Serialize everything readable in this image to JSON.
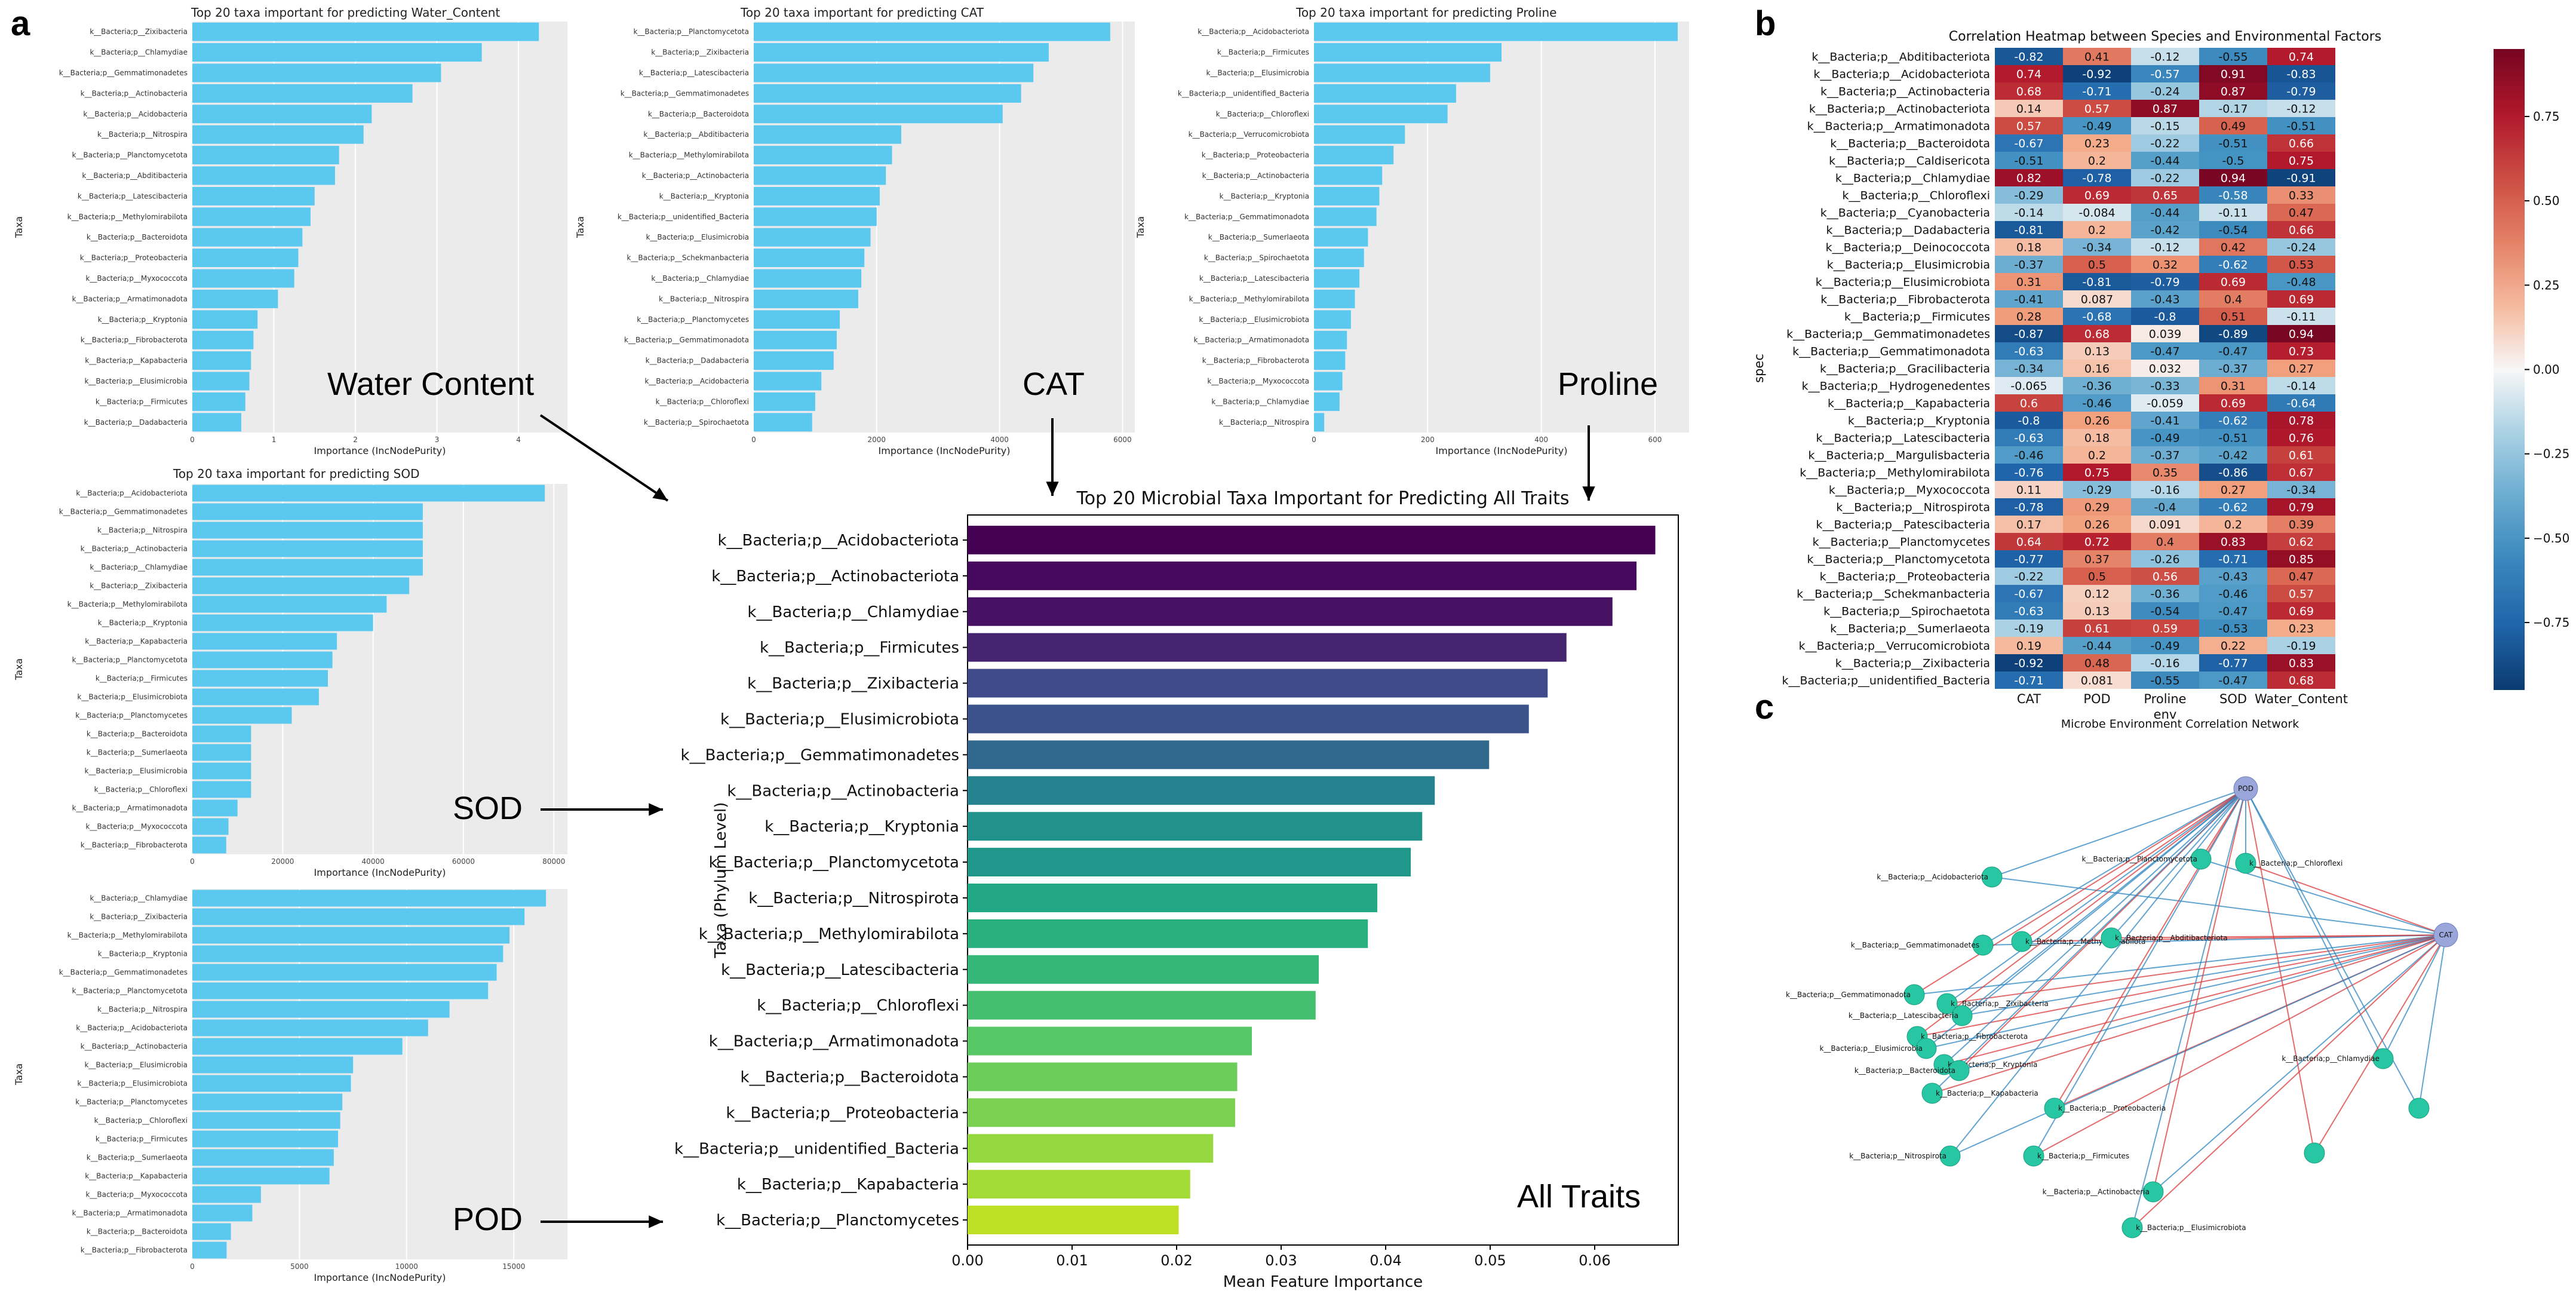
{
  "panels": {
    "a": "a",
    "b": "b",
    "c": "c"
  },
  "labels": {
    "water": "Water Content",
    "cat": "CAT",
    "proline": "Proline",
    "sod": "SOD",
    "pod": "POD",
    "all": "All Traits"
  },
  "colors": {
    "small_bar": "#5bc8ef",
    "small_bg": "#ebebeb",
    "grid": "#ffffff"
  },
  "chart_data": [
    {
      "id": "water",
      "type": "bar",
      "orientation": "horizontal",
      "title": "Top 20 taxa important for predicting Water_Content",
      "xlabel": "Importance (IncNodePurity)",
      "ylabel": "Taxa",
      "xlim": [
        0,
        4.6
      ],
      "xticks": [
        0,
        1,
        2,
        3,
        4
      ],
      "categories": [
        "k__Bacteria;p__Zixibacteria",
        "k__Bacteria;p__Chlamydiae",
        "k__Bacteria;p__Gemmatimonadetes",
        "k__Bacteria;p__Actinobacteria",
        "k__Bacteria;p__Acidobacteria",
        "k__Bacteria;p__Nitrospira",
        "k__Bacteria;p__Planctomycetota",
        "k__Bacteria;p__Abditibacteria",
        "k__Bacteria;p__Latescibacteria",
        "k__Bacteria;p__Methylomirabilota",
        "k__Bacteria;p__Bacteroidota",
        "k__Bacteria;p__Proteobacteria",
        "k__Bacteria;p__Myxococcota",
        "k__Bacteria;p__Armatimonadota",
        "k__Bacteria;p__Kryptonia",
        "k__Bacteria;p__Fibrobacterota",
        "k__Bacteria;p__Kapabacteria",
        "k__Bacteria;p__Elusimicrobia",
        "k__Bacteria;p__Firmicutes",
        "k__Bacteria;p__Dadabacteria"
      ],
      "values": [
        4.25,
        3.55,
        3.05,
        2.7,
        2.2,
        2.1,
        1.8,
        1.75,
        1.5,
        1.45,
        1.35,
        1.3,
        1.25,
        1.05,
        0.8,
        0.75,
        0.72,
        0.7,
        0.65,
        0.6
      ]
    },
    {
      "id": "cat",
      "type": "bar",
      "orientation": "horizontal",
      "title": "Top 20 taxa important for predicting CAT",
      "xlabel": "Importance (IncNodePurity)",
      "ylabel": "Taxa",
      "xlim": [
        0,
        6200
      ],
      "xticks": [
        0,
        2000,
        4000,
        6000
      ],
      "categories": [
        "k__Bacteria;p__Planctomycetota",
        "k__Bacteria;p__Zixibacteria",
        "k__Bacteria;p__Latescibacteria",
        "k__Bacteria;p__Gemmatimonadetes",
        "k__Bacteria;p__Bacteroidota",
        "k__Bacteria;p__Abditibacteria",
        "k__Bacteria;p__Methylomirabilota",
        "k__Bacteria;p__Actinobacteria",
        "k__Bacteria;p__Kryptonia",
        "k__Bacteria;p__unidentified_Bacteria",
        "k__Bacteria;p__Elusimicrobia",
        "k__Bacteria;p__Schekmanbacteria",
        "k__Bacteria;p__Chlamydiae",
        "k__Bacteria;p__Nitrospira",
        "k__Bacteria;p__Planctomycetes",
        "k__Bacteria;p__Gemmatimonadota",
        "k__Bacteria;p__Dadabacteria",
        "k__Bacteria;p__Acidobacteria",
        "k__Bacteria;p__Chloroflexi",
        "k__Bacteria;p__Spirochaetota"
      ],
      "values": [
        5800,
        4800,
        4550,
        4350,
        4050,
        2400,
        2250,
        2150,
        2050,
        2000,
        1900,
        1800,
        1750,
        1700,
        1400,
        1350,
        1300,
        1100,
        1000,
        950
      ]
    },
    {
      "id": "proline",
      "type": "bar",
      "orientation": "horizontal",
      "title": "Top 20 taxa important for predicting Proline",
      "xlabel": "Importance (IncNodePurity)",
      "ylabel": "Taxa",
      "xlim": [
        0,
        660
      ],
      "xticks": [
        0,
        200,
        400,
        600
      ],
      "categories": [
        "k__Bacteria;p__Acidobacteriota",
        "k__Bacteria;p__Firmicutes",
        "k__Bacteria;p__Elusimicrobia",
        "k__Bacteria;p__unidentified_Bacteria",
        "k__Bacteria;p__Chloroflexi",
        "k__Bacteria;p__Verrucomicrobiota",
        "k__Bacteria;p__Proteobacteria",
        "k__Bacteria;p__Actinobacteria",
        "k__Bacteria;p__Kryptonia",
        "k__Bacteria;p__Gemmatimonadota",
        "k__Bacteria;p__Sumerlaeota",
        "k__Bacteria;p__Spirochaetota",
        "k__Bacteria;p__Latescibacteria",
        "k__Bacteria;p__Methylomirabilota",
        "k__Bacteria;p__Elusimicrobiota",
        "k__Bacteria;p__Armatimonadota",
        "k__Bacteria;p__Fibrobacterota",
        "k__Bacteria;p__Myxococcota",
        "k__Bacteria;p__Chlamydiae",
        "k__Bacteria;p__Nitrospira"
      ],
      "values": [
        640,
        330,
        310,
        250,
        235,
        160,
        140,
        120,
        115,
        110,
        95,
        88,
        80,
        72,
        65,
        58,
        55,
        50,
        45,
        18
      ]
    },
    {
      "id": "sod",
      "type": "bar",
      "orientation": "horizontal",
      "title": "Top 20 taxa important for predicting SOD",
      "xlabel": "Importance (IncNodePurity)",
      "ylabel": "Taxa",
      "xlim": [
        0,
        83000
      ],
      "xticks": [
        0,
        20000,
        40000,
        60000,
        80000
      ],
      "categories": [
        "k__Bacteria;p__Acidobacteriota",
        "k__Bacteria;p__Gemmatimonadetes",
        "k__Bacteria;p__Nitrospira",
        "k__Bacteria;p__Actinobacteria",
        "k__Bacteria;p__Chlamydiae",
        "k__Bacteria;p__Zixibacteria",
        "k__Bacteria;p__Methylomirabilota",
        "k__Bacteria;p__Kryptonia",
        "k__Bacteria;p__Kapabacteria",
        "k__Bacteria;p__Planctomycetota",
        "k__Bacteria;p__Firmicutes",
        "k__Bacteria;p__Elusimicrobiota",
        "k__Bacteria;p__Planctomycetes",
        "k__Bacteria;p__Bacteroidota",
        "k__Bacteria;p__Sumerlaeota",
        "k__Bacteria;p__Elusimicrobia",
        "k__Bacteria;p__Chloroflexi",
        "k__Bacteria;p__Armatimonadota",
        "k__Bacteria;p__Myxococcota",
        "k__Bacteria;p__Fibrobacterota"
      ],
      "values": [
        78000,
        51000,
        51000,
        51000,
        51000,
        48000,
        43000,
        40000,
        32000,
        31000,
        30000,
        28000,
        22000,
        13000,
        13000,
        13000,
        13000,
        10000,
        8000,
        7500
      ]
    },
    {
      "id": "pod",
      "type": "bar",
      "orientation": "horizontal",
      "title": "",
      "xlabel": "Importance (IncNodePurity)",
      "ylabel": "Taxa",
      "xlim": [
        0,
        17500
      ],
      "xticks": [
        0,
        5000,
        10000,
        15000
      ],
      "categories": [
        "k__Bacteria;p__Chlamydiae",
        "k__Bacteria;p__Zixibacteria",
        "k__Bacteria;p__Methylomirabilota",
        "k__Bacteria;p__Kryptonia",
        "k__Bacteria;p__Gemmatimonadetes",
        "k__Bacteria;p__Planctomycetota",
        "k__Bacteria;p__Nitrospira",
        "k__Bacteria;p__Acidobacteriota",
        "k__Bacteria;p__Actinobacteria",
        "k__Bacteria;p__Elusimicrobia",
        "k__Bacteria;p__Elusimicrobiota",
        "k__Bacteria;p__Planctomycetes",
        "k__Bacteria;p__Chloroflexi",
        "k__Bacteria;p__Firmicutes",
        "k__Bacteria;p__Sumerlaeota",
        "k__Bacteria;p__Kapabacteria",
        "k__Bacteria;p__Myxococcota",
        "k__Bacteria;p__Armatimonadota",
        "k__Bacteria;p__Bacteroidota",
        "k__Bacteria;p__Fibrobacterota"
      ],
      "values": [
        16500,
        15500,
        14800,
        14500,
        14200,
        13800,
        12000,
        11000,
        9800,
        7500,
        7400,
        7000,
        6900,
        6800,
        6600,
        6400,
        3200,
        2800,
        1800,
        1600
      ]
    },
    {
      "id": "all",
      "type": "bar",
      "orientation": "horizontal",
      "title": "Top 20 Microbial Taxa Important for Predicting All Traits",
      "xlabel": "Mean Feature Importance",
      "ylabel": "Taxa (Phylum Level)",
      "xlim": [
        0,
        0.068
      ],
      "xticks": [
        "0.00",
        "0.01",
        "0.02",
        "0.03",
        "0.04",
        "0.05",
        "0.06"
      ],
      "categories": [
        "k__Bacteria;p__Acidobacteriota",
        "k__Bacteria;p__Actinobacteriota",
        "k__Bacteria;p__Chlamydiae",
        "k__Bacteria;p__Firmicutes",
        "k__Bacteria;p__Zixibacteria",
        "k__Bacteria;p__Elusimicrobiota",
        "k__Bacteria;p__Gemmatimonadetes",
        "k__Bacteria;p__Actinobacteria",
        "k__Bacteria;p__Kryptonia",
        "k__Bacteria;p__Planctomycetota",
        "k__Bacteria;p__Nitrospirota",
        "k__Bacteria;p__Methylomirabilota",
        "k__Bacteria;p__Latescibacteria",
        "k__Bacteria;p__Chloroflexi",
        "k__Bacteria;p__Armatimonadota",
        "k__Bacteria;p__Bacteroidota",
        "k__Bacteria;p__Proteobacteria",
        "k__Bacteria;p__unidentified_Bacteria",
        "k__Bacteria;p__Kapabacteria",
        "k__Bacteria;p__Planctomycetes"
      ],
      "values": [
        0.0658,
        0.064,
        0.0617,
        0.0573,
        0.0555,
        0.0537,
        0.0499,
        0.0447,
        0.0435,
        0.0424,
        0.0392,
        0.0383,
        0.0336,
        0.0333,
        0.0272,
        0.0258,
        0.0256,
        0.0235,
        0.0213,
        0.0202
      ],
      "colors": [
        "#440154",
        "#46085c",
        "#471164",
        "#45256f",
        "#3e4a89",
        "#3b528b",
        "#31688e",
        "#26828e",
        "#21918c",
        "#1f988b",
        "#22a884",
        "#2ab07f",
        "#35b779",
        "#44bf70",
        "#58c765",
        "#6ccd5a",
        "#7ad151",
        "#95d840",
        "#a5db36",
        "#bddf26"
      ]
    },
    {
      "id": "heatmap",
      "type": "heatmap",
      "title": "Correlation Heatmap between Species and Environmental Factors",
      "xlabel": "env",
      "ylabel": "spec",
      "columns": [
        "CAT",
        "POD",
        "Proline",
        "SOD",
        "Water_Content"
      ],
      "rows": [
        "k__Bacteria;p__Abditibacteriota",
        "k__Bacteria;p__Acidobacteriota",
        "k__Bacteria;p__Actinobacteria",
        "k__Bacteria;p__Actinobacteriota",
        "k__Bacteria;p__Armatimonadota",
        "k__Bacteria;p__Bacteroidota",
        "k__Bacteria;p__Caldisericota",
        "k__Bacteria;p__Chlamydiae",
        "k__Bacteria;p__Chloroflexi",
        "k__Bacteria;p__Cyanobacteria",
        "k__Bacteria;p__Dadabacteria",
        "k__Bacteria;p__Deinococcota",
        "k__Bacteria;p__Elusimicrobia",
        "k__Bacteria;p__Elusimicrobiota",
        "k__Bacteria;p__Fibrobacterota",
        "k__Bacteria;p__Firmicutes",
        "k__Bacteria;p__Gemmatimonadetes",
        "k__Bacteria;p__Gemmatimonadota",
        "k__Bacteria;p__Gracilibacteria",
        "k__Bacteria;p__Hydrogenedentes",
        "k__Bacteria;p__Kapabacteria",
        "k__Bacteria;p__Kryptonia",
        "k__Bacteria;p__Latescibacteria",
        "k__Bacteria;p__Margulisbacteria",
        "k__Bacteria;p__Methylomirabilota",
        "k__Bacteria;p__Myxococcota",
        "k__Bacteria;p__Nitrospirota",
        "k__Bacteria;p__Patescibacteria",
        "k__Bacteria;p__Planctomycetes",
        "k__Bacteria;p__Planctomycetota",
        "k__Bacteria;p__Proteobacteria",
        "k__Bacteria;p__Schekmanbacteria",
        "k__Bacteria;p__Spirochaetota",
        "k__Bacteria;p__Sumerlaeota",
        "k__Bacteria;p__Verrucomicrobiota",
        "k__Bacteria;p__Zixibacteria",
        "k__Bacteria;p__unidentified_Bacteria"
      ],
      "values": [
        [
          -0.82,
          0.41,
          -0.12,
          -0.55,
          0.74
        ],
        [
          0.74,
          -0.92,
          -0.57,
          0.91,
          -0.83
        ],
        [
          0.68,
          -0.71,
          -0.24,
          0.87,
          -0.79
        ],
        [
          0.14,
          0.57,
          0.87,
          -0.17,
          -0.12
        ],
        [
          0.57,
          -0.49,
          -0.15,
          0.49,
          -0.51
        ],
        [
          -0.67,
          0.23,
          -0.22,
          -0.51,
          0.66
        ],
        [
          -0.51,
          0.2,
          -0.44,
          -0.5,
          0.75
        ],
        [
          0.82,
          -0.78,
          -0.22,
          0.94,
          -0.91
        ],
        [
          -0.29,
          0.69,
          0.65,
          -0.58,
          0.33
        ],
        [
          -0.14,
          -0.084,
          -0.44,
          -0.11,
          0.47
        ],
        [
          -0.81,
          0.2,
          -0.42,
          -0.54,
          0.66
        ],
        [
          0.18,
          -0.34,
          -0.12,
          0.42,
          -0.24
        ],
        [
          -0.37,
          0.5,
          0.32,
          -0.62,
          0.53
        ],
        [
          0.31,
          -0.81,
          -0.79,
          0.69,
          -0.48
        ],
        [
          -0.41,
          0.087,
          -0.43,
          0.4,
          0.69
        ],
        [
          0.28,
          -0.68,
          -0.8,
          0.51,
          -0.11
        ],
        [
          -0.87,
          0.68,
          0.039,
          -0.89,
          0.94
        ],
        [
          -0.63,
          0.13,
          -0.47,
          -0.47,
          0.73
        ],
        [
          -0.34,
          0.16,
          0.032,
          -0.37,
          0.27
        ],
        [
          -0.065,
          -0.36,
          -0.33,
          0.31,
          -0.14
        ],
        [
          0.6,
          -0.46,
          -0.059,
          0.69,
          -0.64
        ],
        [
          -0.8,
          0.26,
          -0.41,
          -0.62,
          0.78
        ],
        [
          -0.63,
          0.18,
          -0.49,
          -0.51,
          0.76
        ],
        [
          -0.46,
          0.2,
          -0.37,
          -0.42,
          0.61
        ],
        [
          -0.76,
          0.75,
          0.35,
          -0.86,
          0.67
        ],
        [
          0.11,
          -0.29,
          -0.16,
          0.27,
          -0.34
        ],
        [
          -0.78,
          0.29,
          -0.4,
          -0.62,
          0.79
        ],
        [
          0.17,
          0.26,
          0.091,
          0.2,
          0.39
        ],
        [
          0.64,
          0.72,
          0.4,
          0.83,
          0.62
        ],
        [
          -0.77,
          0.37,
          -0.26,
          -0.71,
          0.85
        ],
        [
          -0.22,
          0.5,
          0.56,
          -0.43,
          0.47
        ],
        [
          -0.67,
          0.12,
          -0.36,
          -0.46,
          0.57
        ],
        [
          -0.63,
          0.13,
          -0.54,
          -0.47,
          0.69
        ],
        [
          -0.19,
          0.61,
          0.59,
          -0.53,
          0.23
        ],
        [
          0.19,
          -0.44,
          -0.49,
          0.22,
          -0.19
        ],
        [
          -0.92,
          0.48,
          -0.16,
          -0.77,
          0.83
        ],
        [
          -0.71,
          0.081,
          -0.55,
          -0.47,
          0.68
        ]
      ],
      "colorbar_ticks": [
        "0.75",
        "0.50",
        "0.25",
        "0.00",
        "−0.25",
        "−0.50",
        "−0.75"
      ],
      "colorbar_values": [
        0.75,
        0.5,
        0.25,
        0,
        -0.25,
        -0.5,
        -0.75
      ],
      "vlim": [
        -0.95,
        0.95
      ]
    },
    {
      "id": "network",
      "type": "network",
      "title": "Microbe Environment Correlation Network",
      "env_nodes": [
        {
          "name": "POD",
          "pos": "top"
        },
        {
          "name": "CAT",
          "pos": "right"
        }
      ],
      "microbe_nodes": [
        "k__Bacteria;p__Planctomycetota",
        "k__Bacteria;p__Chloroflexi",
        "k__Bacteria;p__Acidobacteriota",
        "k__Bacteria;p__Methylomirabilota",
        "k__Bacteria;p__Gemmatimonadetes",
        "k__Bacteria;p__Abditibacteriota",
        "k__Bacteria;p__Gemmatimonadota",
        "k__Bacteria;p__Zixibacteria",
        "k__Bacteria;p__Latescibacteria",
        "k__Bacteria;p__Fibrobacterota",
        "k__Bacteria;p__Elusimicrobia",
        "k__Bacteria;p__Kryptonia",
        "k__Bacteria;p__Bacteroidota",
        "k__Bacteria;p__Kapabacteria",
        "k__Bacteria;p__Chlamydiae",
        "k__Bacteria;p__Proteobacteria",
        "k__Bacteria;p__Nitrospirota",
        "k__Bacteria;p__Firmicutes",
        "k__Bacteria;p__Actinobacteria",
        "k__Bacteria;p__Elusimicrobiota"
      ]
    }
  ]
}
